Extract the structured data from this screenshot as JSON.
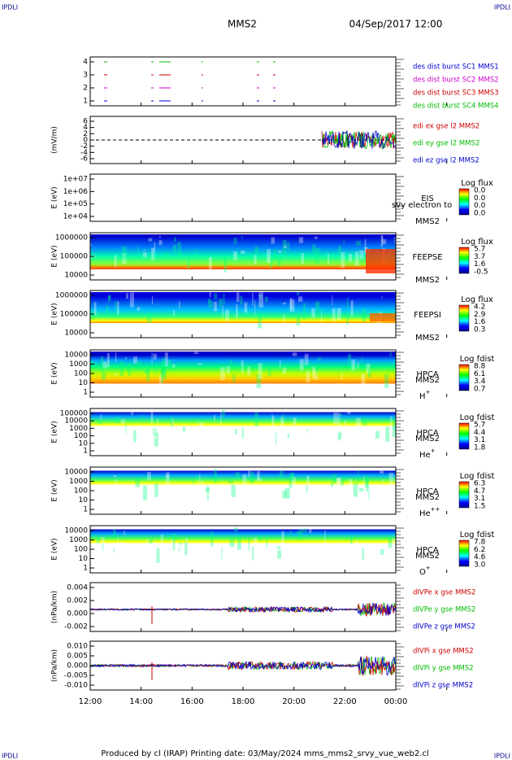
{
  "header": {
    "corner_left": "IPDLI",
    "corner_right": "IPDLI",
    "spacecraft": "MMS2",
    "date": "04/Sep/2017 12:00"
  },
  "panels": [
    {
      "ylabel": "",
      "yticks": [
        "4",
        "3",
        "2",
        "1"
      ],
      "legend": [
        {
          "text": "des dist burst SC1 MMS1",
          "color": "#0000cc"
        },
        {
          "text": "des dist burst SC2 MMS2",
          "color": "#cc00cc"
        },
        {
          "text": "des dist burst SC3 MMS3",
          "color": "#cc0000"
        },
        {
          "text": "des dist burst SC4 MMS4",
          "color": "#00bb00"
        }
      ]
    },
    {
      "ylabel": "(mV/m)",
      "yticks": [
        "6",
        "4",
        "2",
        "0",
        "-2",
        "-4",
        "-6"
      ],
      "legend": [
        {
          "text": "edi ex gse l2 MMS2",
          "color": "#cc0000"
        },
        {
          "text": "edi ey gse l2 MMS2",
          "color": "#00bb00"
        },
        {
          "text": "edi ez gse l2 MMS2",
          "color": "#0000cc"
        }
      ]
    },
    {
      "ylabel": "E (eV)",
      "yticks": [
        "1e+07",
        "1e+06",
        "1e+05",
        "1e+04"
      ],
      "side": [
        "EIS",
        "MMS2"
      ],
      "overlay": "svy electron to",
      "colorbar": {
        "title": "Log flux",
        "labels": [
          "0.0",
          "0.0",
          "0.0",
          "0.0"
        ]
      }
    },
    {
      "ylabel": "E (eV)",
      "yticks": [
        "1000000",
        "100000",
        "10000"
      ],
      "side": [
        "FEEPSE",
        "MMS2"
      ],
      "colorbar": {
        "title": "Log flux",
        "labels": [
          "5.7",
          "3.7",
          "1.6",
          "-0.5"
        ]
      }
    },
    {
      "ylabel": "E (eV)",
      "yticks": [
        "1000000",
        "100000",
        "10000"
      ],
      "side": [
        "FEEPSI",
        "MMS2"
      ],
      "colorbar": {
        "title": "Log flux",
        "labels": [
          "4.2",
          "2.9",
          "1.6",
          "0.3"
        ]
      }
    },
    {
      "ylabel": "E (eV)",
      "yticks": [
        "10000",
        "1000",
        "100",
        "10",
        "1"
      ],
      "side": [
        "HPCA",
        "MMS2"
      ],
      "species": {
        "base": "H",
        "sup": "+"
      },
      "colorbar": {
        "title": "Log fdist",
        "labels": [
          "8.8",
          "6.1",
          "3.4",
          "0.7"
        ]
      }
    },
    {
      "ylabel": "E (eV)",
      "yticks": [
        "100000",
        "10000",
        "1000",
        "100",
        "10",
        "1"
      ],
      "side": [
        "HPCA",
        "MMS2"
      ],
      "species": {
        "base": "He",
        "sup": "+"
      },
      "colorbar": {
        "title": "Log fdist",
        "labels": [
          "5.7",
          "4.4",
          "3.1",
          "1.8"
        ]
      }
    },
    {
      "ylabel": "E (eV)",
      "yticks": [
        "10000",
        "1000",
        "100",
        "10",
        "1"
      ],
      "side": [
        "HPCA",
        "MMS2"
      ],
      "species": {
        "base": "He",
        "sup": "++"
      },
      "colorbar": {
        "title": "Log fdist",
        "labels": [
          "6.3",
          "4.7",
          "3.1",
          "1.5"
        ]
      }
    },
    {
      "ylabel": "E (eV)",
      "yticks": [
        "10000",
        "1000",
        "100",
        "10",
        "1"
      ],
      "side": [
        "HPCA",
        "MMS2"
      ],
      "species": {
        "base": "O",
        "sup": "+"
      },
      "colorbar": {
        "title": "Log fdist",
        "labels": [
          "7.8",
          "6.2",
          "4.6",
          "3.0"
        ]
      }
    },
    {
      "ylabel": "(nPa/km)",
      "yticks": [
        "0.004",
        "0.002",
        "0.000",
        "-0.002"
      ],
      "legend": [
        {
          "text": "dIVPe x gse MMS2",
          "color": "#cc0000"
        },
        {
          "text": "dIVPe y gse MMS2",
          "color": "#00bb00"
        },
        {
          "text": "dIVPe z gse MMS2",
          "color": "#0000cc"
        }
      ]
    },
    {
      "ylabel": "(nPa/km)",
      "yticks": [
        "0.010",
        "0.005",
        "0.000",
        "-0.005",
        "-0.010"
      ],
      "legend": [
        {
          "text": "dIVPi x gse MMS2",
          "color": "#cc0000"
        },
        {
          "text": "dIVPi y gse MMS2",
          "color": "#00bb00"
        },
        {
          "text": "dIVPi z gse MMS2",
          "color": "#0000cc"
        }
      ]
    }
  ],
  "xticks": [
    "12:00",
    "14:00",
    "16:00",
    "18:00",
    "20:00",
    "22:00",
    "00:00"
  ],
  "footer": {
    "text": "Produced by cl (IRAP)   Printing date: 03/May/2024   mms_mms2_srvy_vue_web2.cl",
    "corner_left": "IPDLI",
    "corner_right": "IPDLI"
  }
}
